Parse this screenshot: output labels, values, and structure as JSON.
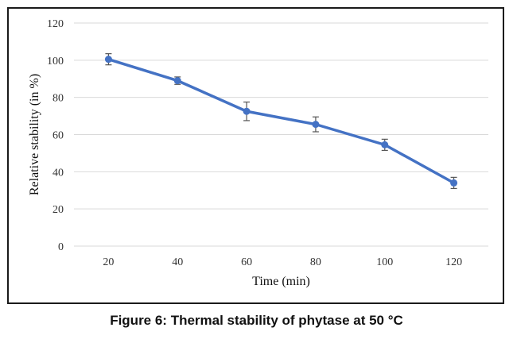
{
  "caption": "Figure 6: Thermal stability of phytase at 50 °C",
  "chart_data": {
    "type": "line",
    "title": "",
    "xlabel": "Time (min)",
    "ylabel": "Relative stability (in %)",
    "categories": [
      "20",
      "40",
      "60",
      "80",
      "100",
      "120"
    ],
    "series": [
      {
        "name": "Relative stability",
        "color": "#4472C4",
        "values": [
          100.5,
          89,
          72.5,
          65.5,
          54.5,
          34
        ],
        "error": [
          3,
          2,
          5,
          4,
          3,
          3
        ]
      }
    ],
    "ylim": [
      0,
      120
    ],
    "yticks": [
      0,
      20,
      40,
      60,
      80,
      100,
      120
    ],
    "grid": true,
    "legend": "none"
  }
}
